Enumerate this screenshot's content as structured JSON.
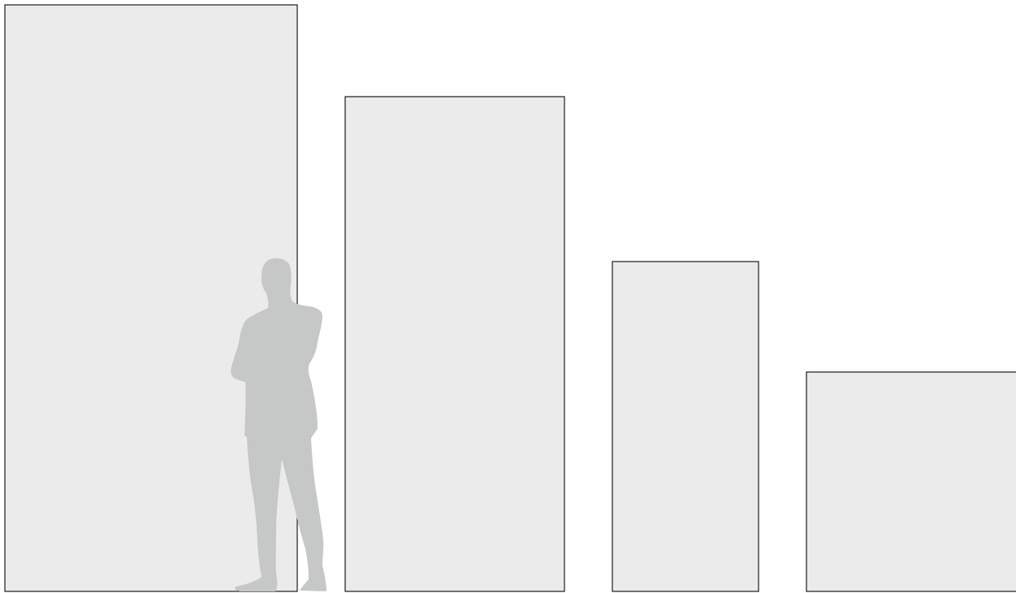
{
  "diagram": {
    "panel_count": 4,
    "human_figure_icon": "standing-man-silhouette",
    "colors": {
      "background": "#ffffff",
      "panel_fill": "#ebebeb",
      "panel_stroke": "#1a1a1a",
      "figure_fill": "#c6c8c7"
    }
  }
}
